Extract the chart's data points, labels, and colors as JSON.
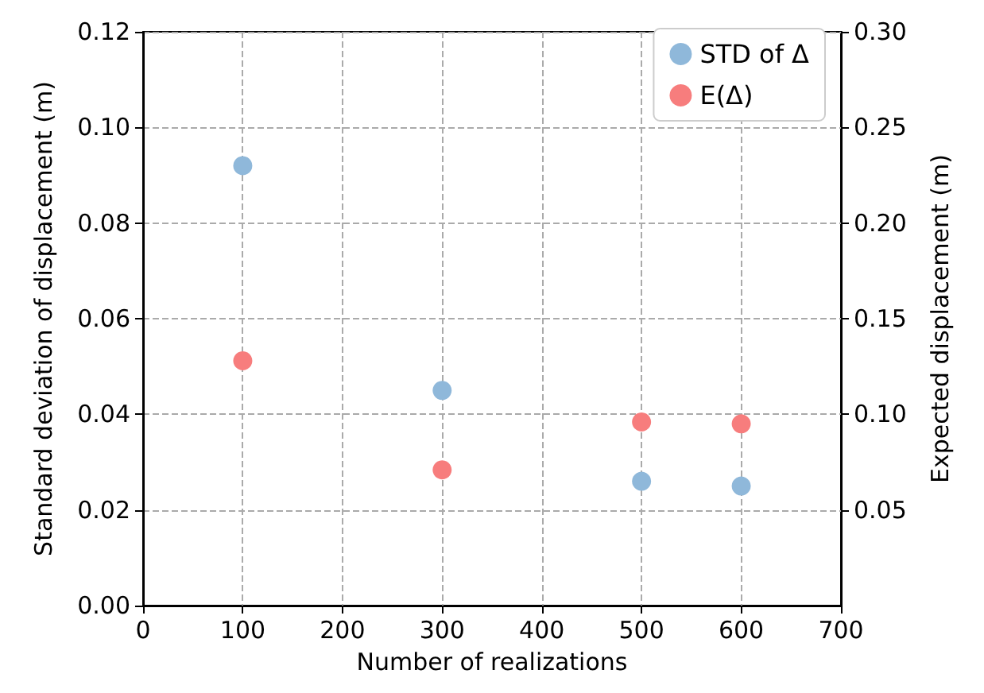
{
  "chart_data": {
    "type": "scatter",
    "xlabel": "Number of realizations",
    "ylabel": "Standard deviation of displacement (m)",
    "y2label": "Expected displacement (m)",
    "xlim": [
      0,
      700
    ],
    "xticks": [
      0,
      100,
      200,
      300,
      400,
      500,
      600,
      700
    ],
    "ylim": [
      0,
      0.12
    ],
    "yticks": [
      {
        "value": 0,
        "label": "0.00"
      },
      {
        "value": 0.02,
        "label": "0.02"
      },
      {
        "value": 0.04,
        "label": "0.04"
      },
      {
        "value": 0.06,
        "label": "0.06"
      },
      {
        "value": 0.08,
        "label": "0.08"
      },
      {
        "value": 0.1,
        "label": "0.10"
      },
      {
        "value": 0.12,
        "label": "0.12"
      }
    ],
    "y2lim": [
      0,
      0.3
    ],
    "y2ticks": [
      {
        "value": 0.05,
        "label": "0.05"
      },
      {
        "value": 0.1,
        "label": "0.10"
      },
      {
        "value": 0.15,
        "label": "0.15"
      },
      {
        "value": 0.2,
        "label": "0.20"
      },
      {
        "value": 0.25,
        "label": "0.25"
      },
      {
        "value": 0.3,
        "label": "0.30"
      }
    ],
    "x": [
      100,
      300,
      500,
      600
    ],
    "series": [
      {
        "name": "STD of Δ",
        "color": "#8fb8da",
        "values": [
          0.092,
          0.045,
          0.026,
          0.025
        ]
      },
      {
        "name": "E(Δ)",
        "color": "#f77d7d",
        "axis": "y2",
        "values": [
          0.128,
          0.071,
          0.096,
          0.095
        ]
      }
    ],
    "grid": true,
    "legend": "top right",
    "marker": "circle"
  }
}
